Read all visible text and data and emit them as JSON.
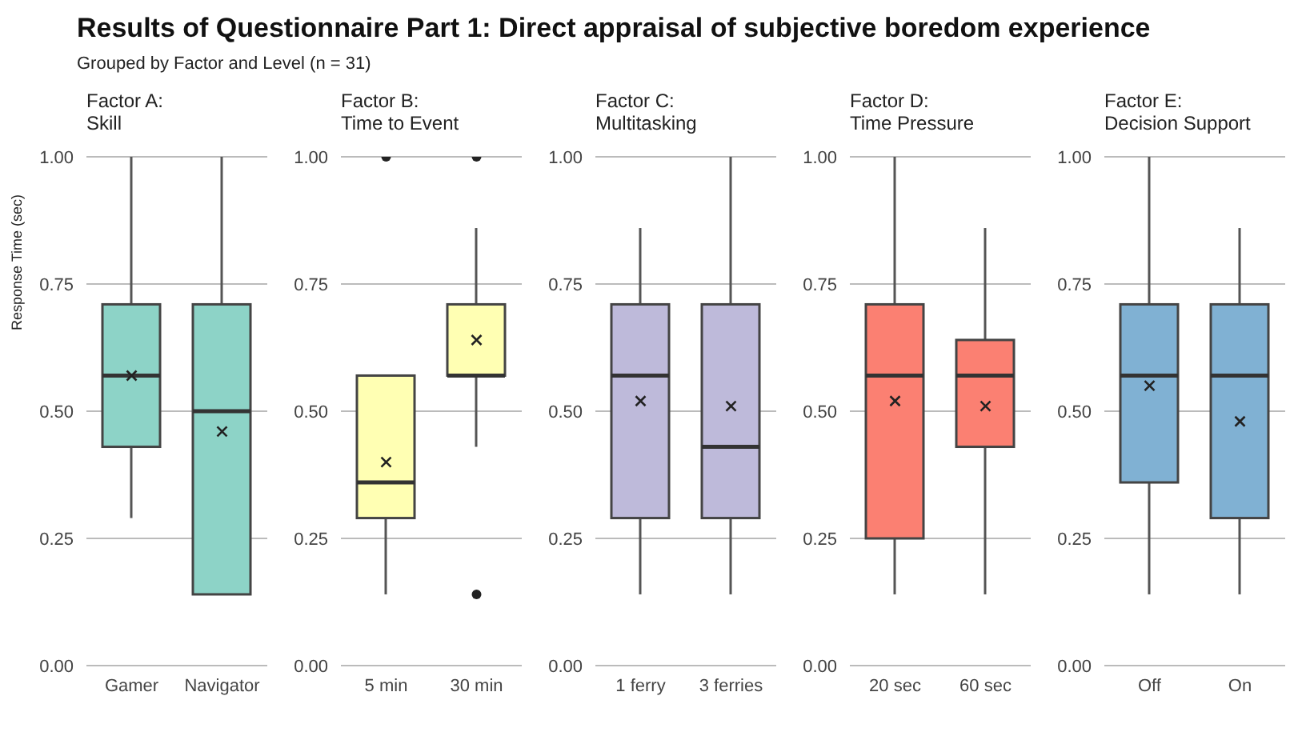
{
  "chart_data": [
    {
      "type": "box",
      "title": "Factor A:",
      "subtitle": "Skill",
      "ylabel": "Response Time (sec)",
      "annotations": [
        "Results of Questionnaire Part 1: Direct appraisal of subjective boredom experience",
        "Grouped by Factor and Level (n = 31)"
      ],
      "categories": [
        "Gamer",
        "Navigator"
      ],
      "color": "#8dd3c7",
      "grid": "y",
      "ylim": [
        0,
        1
      ],
      "yticks": [
        {
          "value": 0,
          "label": "0.00"
        },
        {
          "value": 0.25,
          "label": "0.25"
        },
        {
          "value": 0.5,
          "label": "0.50"
        },
        {
          "value": 0.75,
          "label": "0.75"
        },
        {
          "value": 1,
          "label": "1.00"
        }
      ],
      "boxes": [
        {
          "low": 0.29,
          "q1": 0.43,
          "median": 0.57,
          "q3": 0.71,
          "high": 1,
          "mean": 0.57
        },
        {
          "low": 0.14,
          "q1": 0.14,
          "median": 0.5,
          "q3": 0.71,
          "high": 1,
          "mean": 0.46
        }
      ]
    },
    {
      "type": "box",
      "title": "Factor B:",
      "subtitle": "Time to Event",
      "categories": [
        "5 min",
        "30 min"
      ],
      "color": "#ffffb3",
      "grid": "y",
      "ylim": [
        0,
        1
      ],
      "yticks": [
        {
          "value": 0,
          "label": "0.00"
        },
        {
          "value": 0.25,
          "label": "0.25"
        },
        {
          "value": 0.5,
          "label": "0.50"
        },
        {
          "value": 0.75,
          "label": "0.75"
        },
        {
          "value": 1,
          "label": "1.00"
        }
      ],
      "boxes": [
        {
          "low": 0.14,
          "q1": 0.29,
          "median": 0.36,
          "q3": 0.57,
          "high": 0.57,
          "mean": 0.4,
          "outliers": [
            1
          ]
        },
        {
          "low": 0.43,
          "q1": 0.57,
          "median": 0.57,
          "q3": 0.71,
          "high": 0.86,
          "mean": 0.64,
          "outliers": [
            1,
            0.14
          ]
        }
      ]
    },
    {
      "type": "box",
      "title": "Factor C:",
      "subtitle": "Multitasking",
      "categories": [
        "1 ferry",
        "3 ferries"
      ],
      "color": "#bebada",
      "grid": "y",
      "ylim": [
        0,
        1
      ],
      "yticks": [
        {
          "value": 0,
          "label": "0.00"
        },
        {
          "value": 0.25,
          "label": "0.25"
        },
        {
          "value": 0.5,
          "label": "0.50"
        },
        {
          "value": 0.75,
          "label": "0.75"
        },
        {
          "value": 1,
          "label": "1.00"
        }
      ],
      "boxes": [
        {
          "low": 0.14,
          "q1": 0.29,
          "median": 0.57,
          "q3": 0.71,
          "high": 0.86,
          "mean": 0.52
        },
        {
          "low": 0.14,
          "q1": 0.29,
          "median": 0.43,
          "q3": 0.71,
          "high": 1,
          "mean": 0.51
        }
      ]
    },
    {
      "type": "box",
      "title": "Factor D:",
      "subtitle": "Time Pressure",
      "categories": [
        "20 sec",
        "60 sec"
      ],
      "color": "#fb8072",
      "grid": "y",
      "ylim": [
        0,
        1
      ],
      "yticks": [
        {
          "value": 0,
          "label": "0.00"
        },
        {
          "value": 0.25,
          "label": "0.25"
        },
        {
          "value": 0.5,
          "label": "0.50"
        },
        {
          "value": 0.75,
          "label": "0.75"
        },
        {
          "value": 1,
          "label": "1.00"
        }
      ],
      "boxes": [
        {
          "low": 0.14,
          "q1": 0.25,
          "median": 0.57,
          "q3": 0.71,
          "high": 1,
          "mean": 0.52
        },
        {
          "low": 0.14,
          "q1": 0.43,
          "median": 0.57,
          "q3": 0.64,
          "high": 0.86,
          "mean": 0.51
        }
      ]
    },
    {
      "type": "box",
      "title": "Factor E:",
      "subtitle": "Decision Support",
      "categories": [
        "Off",
        "On"
      ],
      "color": "#80b1d3",
      "grid": "y",
      "ylim": [
        0,
        1
      ],
      "yticks": [
        {
          "value": 0,
          "label": "0.00"
        },
        {
          "value": 0.25,
          "label": "0.25"
        },
        {
          "value": 0.5,
          "label": "0.50"
        },
        {
          "value": 0.75,
          "label": "0.75"
        },
        {
          "value": 1,
          "label": "1.00"
        }
      ],
      "boxes": [
        {
          "low": 0.14,
          "q1": 0.36,
          "median": 0.57,
          "q3": 0.71,
          "high": 1,
          "mean": 0.55
        },
        {
          "low": 0.14,
          "q1": 0.29,
          "median": 0.57,
          "q3": 0.71,
          "high": 0.86,
          "mean": 0.48
        }
      ]
    }
  ]
}
